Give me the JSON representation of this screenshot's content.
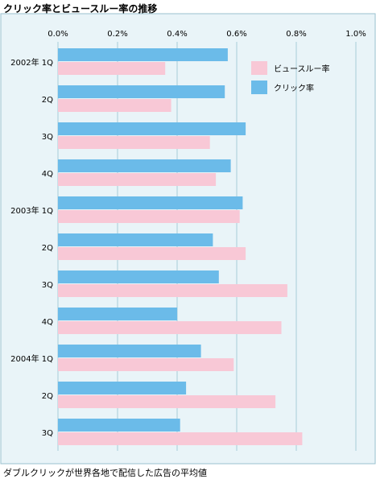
{
  "title": "クリック率とビュースルー率の推移",
  "caption": "ダブルクリックが世界各地で配信した広告の平均値",
  "colors": {
    "click_rate": "#6bbbe9",
    "view_through_rate": "#f8c8d6",
    "plot_background": "#e9f4f8",
    "grid": "#a8cdd8",
    "frame": "#9ac2cf"
  },
  "chart_data": {
    "type": "bar",
    "orientation": "horizontal",
    "title": "クリック率とビュースルー率の推移",
    "xlabel": "",
    "ylabel": "",
    "xlim": [
      0,
      1.0
    ],
    "x_ticks": [
      0,
      0.2,
      0.4,
      0.6,
      0.8,
      1.0
    ],
    "x_tick_labels": [
      "0.0%",
      "0.2%",
      "0.4%",
      "0.6%",
      "0.8%",
      "1.0%"
    ],
    "grid": true,
    "legend_position": "top-right",
    "categories": [
      "2002年 1Q",
      "2Q",
      "3Q",
      "4Q",
      "2003年 1Q",
      "2Q",
      "3Q",
      "4Q",
      "2004年 1Q",
      "2Q",
      "3Q"
    ],
    "series": [
      {
        "name": "クリック率",
        "color_key": "click_rate",
        "values": [
          0.57,
          0.56,
          0.63,
          0.58,
          0.62,
          0.52,
          0.54,
          0.4,
          0.48,
          0.43,
          0.41
        ]
      },
      {
        "name": "ビュースルー率",
        "color_key": "view_through_rate",
        "values": [
          0.36,
          0.38,
          0.51,
          0.53,
          0.61,
          0.63,
          0.77,
          0.75,
          0.59,
          0.73,
          0.82
        ]
      }
    ],
    "legend": [
      "ビュースルー率",
      "クリック率"
    ]
  }
}
